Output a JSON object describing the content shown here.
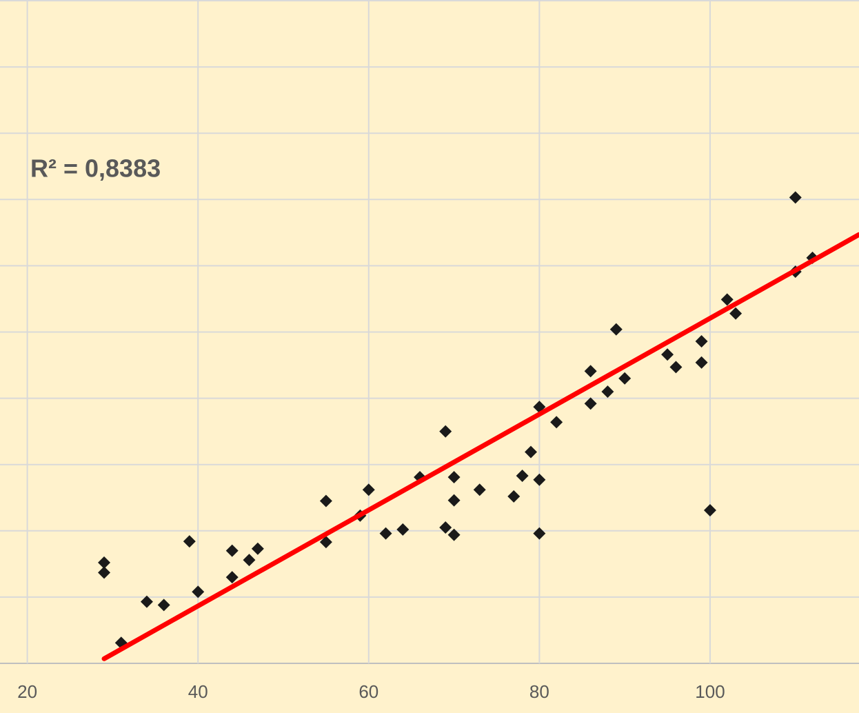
{
  "chart_data": {
    "type": "scatter",
    "annotation": "R² = 0,8383",
    "x": [
      29,
      29,
      31,
      34,
      36,
      39,
      40,
      44,
      44,
      46,
      47,
      55,
      55,
      59,
      60,
      62,
      64,
      66,
      69,
      69,
      70,
      70,
      70,
      73,
      77,
      78,
      79,
      80,
      80,
      80,
      82,
      86,
      86,
      88,
      89,
      90,
      95,
      96,
      99,
      99,
      100,
      102,
      103,
      110,
      110,
      112
    ],
    "values": [
      1.52,
      1.37,
      0.31,
      0.93,
      0.88,
      1.84,
      1.08,
      1.7,
      1.3,
      1.56,
      1.73,
      2.45,
      1.83,
      2.23,
      2.62,
      1.96,
      2.02,
      2.81,
      3.5,
      2.05,
      2.81,
      2.46,
      1.94,
      2.62,
      2.52,
      2.83,
      3.19,
      3.87,
      2.77,
      1.96,
      3.64,
      4.41,
      3.92,
      4.1,
      5.04,
      4.3,
      4.66,
      4.47,
      4.86,
      4.54,
      2.31,
      5.49,
      5.28,
      7.03,
      5.91,
      6.12
    ],
    "color": "#1a1a1a",
    "trendline": {
      "x": [
        29,
        117.45
      ],
      "values": [
        0.07,
        6.47
      ],
      "color": "#ff0000"
    },
    "xlim": [
      16.8,
      117.45
    ],
    "ylim": [
      0,
      10
    ],
    "xticks": [
      20,
      40,
      60,
      80,
      100
    ],
    "ygrid": [
      0,
      1,
      2,
      3,
      4,
      5,
      6,
      7,
      8,
      9,
      10
    ],
    "grid": true
  }
}
